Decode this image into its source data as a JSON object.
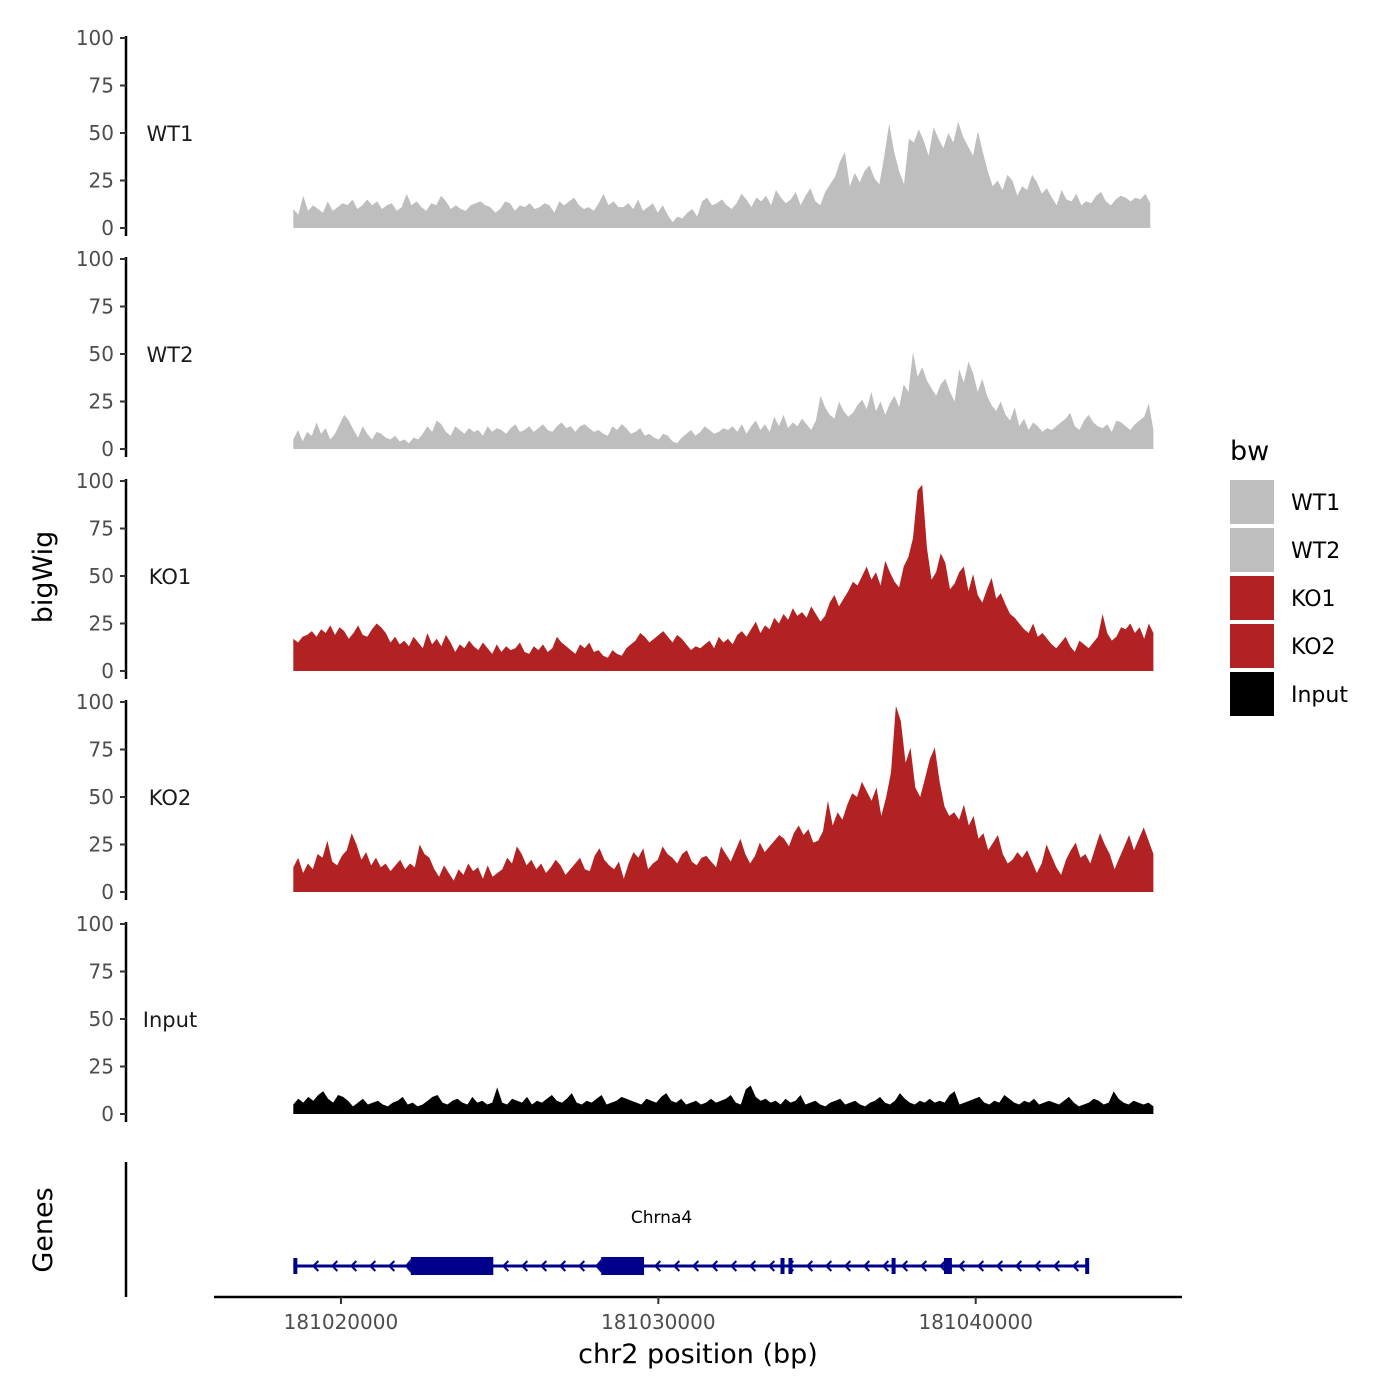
{
  "chart_data": {
    "type": "area",
    "subtype": "genome-browser-coverage-tracks",
    "ylabel": "bigWig",
    "xlabel": "chr2 position (bp)",
    "xlim": [
      181016000,
      181046500
    ],
    "x_ticks": [
      181020000,
      181030000,
      181040000
    ],
    "x_tick_labels": [
      "181020000",
      "181030000",
      "181040000"
    ],
    "ylim": [
      0,
      100
    ],
    "y_ticks": [
      0,
      25,
      50,
      75,
      100
    ],
    "y_tick_labels": [
      "0",
      "25",
      "50",
      "75",
      "100"
    ],
    "tracks": [
      {
        "name": "WT1",
        "color": "#bebebe",
        "x_start": 181018500,
        "x_end": 181045500,
        "values": [
          10,
          7,
          17,
          9,
          12,
          10,
          8,
          14,
          9,
          11,
          13,
          12,
          15,
          10,
          12,
          15,
          12,
          14,
          10,
          12,
          13,
          9,
          11,
          18,
          12,
          14,
          11,
          9,
          13,
          12,
          17,
          14,
          10,
          12,
          10,
          9,
          12,
          13,
          14,
          12,
          11,
          8,
          10,
          14,
          13,
          9,
          12,
          11,
          13,
          10,
          11,
          13,
          12,
          8,
          14,
          12,
          14,
          16,
          12,
          10,
          11,
          9,
          13,
          18,
          12,
          14,
          11,
          11,
          13,
          10,
          15,
          9,
          11,
          13,
          8,
          12,
          7,
          3,
          6,
          5,
          8,
          10,
          6,
          14,
          16,
          12,
          13,
          15,
          12,
          10,
          13,
          18,
          15,
          11,
          16,
          14,
          17,
          12,
          20,
          16,
          13,
          15,
          19,
          12,
          17,
          21,
          14,
          12,
          19,
          23,
          27,
          35,
          40,
          22,
          29,
          24,
          30,
          33,
          26,
          23,
          38,
          55,
          40,
          30,
          23,
          47,
          45,
          52,
          46,
          38,
          53,
          47,
          42,
          50,
          45,
          56,
          48,
          43,
          38,
          51,
          40,
          30,
          22,
          25,
          20,
          28,
          25,
          17,
          22,
          20,
          28,
          24,
          18,
          21,
          16,
          12,
          20,
          15,
          14,
          18,
          12,
          14,
          13,
          17,
          19,
          14,
          12,
          15,
          17,
          16,
          14,
          16,
          15,
          18,
          13
        ],
        "peak": 56
      },
      {
        "name": "WT2",
        "color": "#bebebe",
        "x_start": 181018500,
        "x_end": 181045600,
        "values": [
          5,
          10,
          4,
          9,
          7,
          14,
          8,
          11,
          5,
          8,
          13,
          18,
          15,
          10,
          6,
          12,
          8,
          5,
          9,
          8,
          6,
          5,
          7,
          4,
          5,
          3,
          6,
          5,
          8,
          12,
          9,
          15,
          13,
          9,
          7,
          12,
          10,
          8,
          11,
          9,
          10,
          7,
          12,
          9,
          11,
          10,
          8,
          11,
          13,
          9,
          10,
          12,
          9,
          11,
          13,
          10,
          9,
          12,
          14,
          11,
          12,
          9,
          12,
          13,
          11,
          9,
          10,
          8,
          7,
          12,
          10,
          13,
          11,
          8,
          9,
          11,
          7,
          8,
          6,
          5,
          8,
          7,
          4,
          3,
          6,
          8,
          10,
          7,
          9,
          12,
          10,
          8,
          9,
          11,
          10,
          12,
          9,
          13,
          8,
          12,
          15,
          10,
          13,
          9,
          17,
          12,
          18,
          11,
          14,
          12,
          16,
          13,
          10,
          15,
          28,
          22,
          18,
          16,
          25,
          20,
          17,
          19,
          23,
          26,
          21,
          30,
          20,
          25,
          18,
          24,
          28,
          22,
          34,
          30,
          51,
          38,
          43,
          36,
          32,
          28,
          34,
          37,
          30,
          25,
          42,
          35,
          46,
          40,
          30,
          37,
          28,
          23,
          20,
          25,
          18,
          15,
          22,
          12,
          16,
          10,
          14,
          12,
          9,
          11,
          10,
          12,
          14,
          16,
          19,
          12,
          10,
          15,
          18,
          14,
          12,
          11,
          13,
          9,
          15,
          14,
          12,
          10,
          13,
          15,
          17,
          24,
          10
        ],
        "peak": 51
      },
      {
        "name": "KO1",
        "color": "#b22222",
        "x_start": 181018500,
        "x_end": 181045600,
        "values": [
          17,
          15,
          18,
          19,
          21,
          18,
          22,
          20,
          24,
          19,
          23,
          21,
          17,
          20,
          24,
          19,
          18,
          22,
          25,
          23,
          20,
          15,
          18,
          14,
          16,
          13,
          18,
          15,
          12,
          20,
          14,
          17,
          13,
          19,
          15,
          10,
          14,
          12,
          16,
          13,
          11,
          15,
          12,
          9,
          14,
          10,
          13,
          11,
          12,
          15,
          10,
          9,
          13,
          11,
          14,
          10,
          12,
          18,
          15,
          13,
          11,
          9,
          14,
          12,
          15,
          10,
          11,
          8,
          7,
          11,
          9,
          8,
          12,
          14,
          16,
          20,
          18,
          15,
          17,
          19,
          21,
          18,
          15,
          19,
          17,
          14,
          11,
          13,
          12,
          14,
          16,
          12,
          18,
          15,
          17,
          14,
          19,
          21,
          18,
          22,
          26,
          20,
          24,
          22,
          28,
          25,
          30,
          27,
          33,
          29,
          31,
          28,
          34,
          30,
          26,
          29,
          36,
          40,
          34,
          38,
          42,
          47,
          45,
          50,
          55,
          48,
          52,
          45,
          58,
          52,
          47,
          44,
          55,
          60,
          70,
          95,
          98,
          65,
          48,
          52,
          62,
          57,
          43,
          46,
          52,
          55,
          42,
          51,
          40,
          36,
          43,
          49,
          38,
          41,
          35,
          30,
          28,
          25,
          22,
          20,
          25,
          18,
          20,
          17,
          14,
          12,
          15,
          18,
          13,
          10,
          16,
          14,
          12,
          15,
          18,
          30,
          20,
          16,
          18,
          23,
          22,
          25,
          20,
          23,
          17,
          25,
          20
        ],
        "peak": 98
      },
      {
        "name": "KO2",
        "color": "#b22222",
        "x_start": 181018500,
        "x_end": 181045600,
        "values": [
          13,
          18,
          10,
          15,
          12,
          20,
          18,
          27,
          16,
          14,
          19,
          22,
          31,
          25,
          17,
          21,
          14,
          18,
          13,
          15,
          11,
          14,
          17,
          12,
          15,
          13,
          25,
          20,
          18,
          12,
          8,
          14,
          10,
          6,
          12,
          9,
          15,
          11,
          13,
          7,
          14,
          8,
          10,
          12,
          18,
          15,
          24,
          20,
          14,
          17,
          12,
          15,
          10,
          13,
          17,
          14,
          9,
          12,
          15,
          18,
          12,
          11,
          19,
          23,
          17,
          14,
          12,
          16,
          7,
          15,
          21,
          18,
          23,
          12,
          15,
          17,
          24,
          20,
          18,
          15,
          20,
          22,
          16,
          14,
          18,
          19,
          16,
          13,
          24,
          20,
          16,
          22,
          28,
          20,
          15,
          19,
          26,
          21,
          24,
          27,
          30,
          28,
          24,
          31,
          35,
          30,
          33,
          26,
          27,
          32,
          48,
          35,
          42,
          38,
          46,
          52,
          50,
          58,
          53,
          48,
          55,
          40,
          50,
          63,
          98,
          90,
          68,
          76,
          55,
          50,
          60,
          70,
          76,
          58,
          45,
          40,
          42,
          38,
          46,
          35,
          40,
          28,
          31,
          22,
          26,
          30,
          20,
          15,
          17,
          21,
          18,
          22,
          16,
          10,
          15,
          25,
          19,
          13,
          9,
          17,
          22,
          26,
          18,
          20,
          15,
          23,
          31,
          25,
          20,
          12,
          18,
          24,
          30,
          22,
          28,
          34,
          27,
          20
        ],
        "peak": 98
      },
      {
        "name": "Input",
        "color": "#000000",
        "x_start": 181018500,
        "x_end": 181045600,
        "values": [
          5,
          8,
          6,
          9,
          7,
          10,
          12,
          8,
          6,
          10,
          9,
          7,
          4,
          6,
          8,
          5,
          6,
          7,
          5,
          4,
          6,
          7,
          9,
          5,
          6,
          4,
          5,
          7,
          9,
          10,
          6,
          5,
          7,
          8,
          6,
          5,
          9,
          6,
          7,
          5,
          6,
          14,
          6,
          5,
          8,
          7,
          6,
          9,
          5,
          7,
          6,
          8,
          10,
          7,
          6,
          8,
          11,
          6,
          5,
          7,
          6,
          8,
          10,
          5,
          6,
          7,
          9,
          8,
          7,
          6,
          5,
          8,
          7,
          6,
          9,
          11,
          7,
          6,
          8,
          5,
          6,
          7,
          5,
          6,
          8,
          6,
          7,
          8,
          10,
          6,
          5,
          13,
          15,
          9,
          7,
          8,
          6,
          7,
          5,
          8,
          6,
          7,
          10,
          5,
          6,
          7,
          5,
          4,
          6,
          7,
          8,
          5,
          6,
          7,
          5,
          4,
          6,
          7,
          9,
          6,
          5,
          7,
          11,
          8,
          6,
          5,
          7,
          6,
          8,
          6,
          7,
          6,
          10,
          12,
          5,
          6,
          7,
          8,
          9,
          6,
          5,
          7,
          6,
          10,
          8,
          6,
          5,
          7,
          6,
          8,
          5,
          6,
          7,
          6,
          5,
          7,
          9,
          6,
          4,
          5,
          6,
          8,
          7,
          5,
          6,
          12,
          8,
          6,
          5,
          7,
          6,
          5,
          6,
          4
        ],
        "peak": 15
      }
    ],
    "gene_track": {
      "label": "Genes",
      "gene_name": "Chrna4",
      "color": "#00008b",
      "strand": "-",
      "start": 181018500,
      "end": 181043550,
      "exons": [
        [
          181018500,
          181018600
        ],
        [
          181022200,
          181024800
        ],
        [
          181028200,
          181029550
        ],
        [
          181033850,
          181033950
        ],
        [
          181034100,
          181034200
        ],
        [
          181037350,
          181037450
        ],
        [
          181039000,
          181039250
        ],
        [
          181043450,
          181043550
        ]
      ]
    },
    "legend": {
      "title": "bw",
      "position": "right",
      "entries": [
        {
          "label": "WT1",
          "color": "#bebebe"
        },
        {
          "label": "WT2",
          "color": "#bebebe"
        },
        {
          "label": "KO1",
          "color": "#b22222"
        },
        {
          "label": "KO2",
          "color": "#b22222"
        },
        {
          "label": "Input",
          "color": "#000000"
        }
      ]
    }
  }
}
